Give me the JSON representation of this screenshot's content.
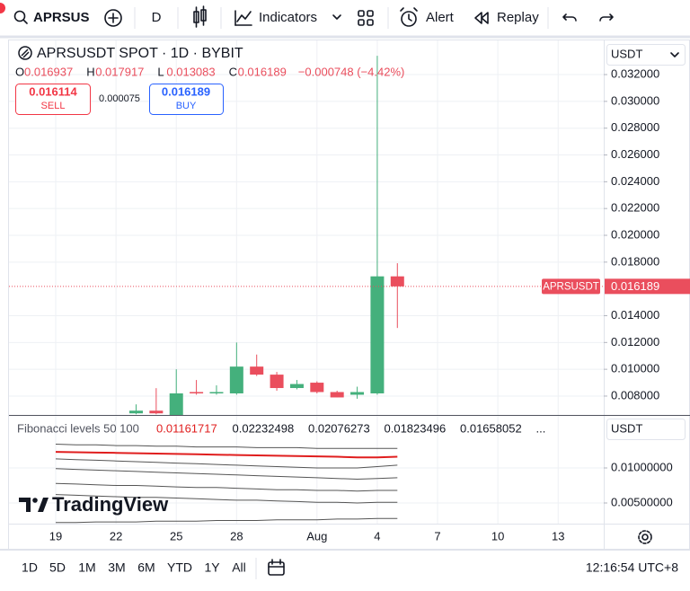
{
  "toolbar": {
    "symbol": "APRSUS",
    "interval": "D",
    "indicators": "Indicators",
    "alert": "Alert",
    "replay": "Replay"
  },
  "legend": {
    "title": "APRSUSDT SPOT · 1D · BYBIT",
    "ohlc": [
      {
        "key": "O",
        "value": "0.016937"
      },
      {
        "key": "H",
        "value": "0.017917"
      },
      {
        "key": "L",
        "value": "0.013083"
      },
      {
        "key": "C",
        "value": "0.016189"
      }
    ],
    "change": "−0.000748 (−4.42%)",
    "sell_price": "0.016114",
    "sell": "SELL",
    "spread": "0.000075",
    "buy_price": "0.016189",
    "buy": "BUY"
  },
  "currency": "USDT",
  "price_label": {
    "symbol": "APRSUSDT",
    "price": "0.016189"
  },
  "indicator_legend": {
    "title": "Fibonacci levels 50 100",
    "values": [
      "0.01161717",
      "0.02232498",
      "0.02076273",
      "0.01823496",
      "0.01658052",
      "..."
    ]
  },
  "watermark": "TradingView",
  "timeframes": [
    "1D",
    "5D",
    "1M",
    "3M",
    "6M",
    "YTD",
    "1Y",
    "All"
  ],
  "clock": "12:16:54 UTC+8",
  "chart_data": [
    {
      "type": "candlestick",
      "categories": [
        "19",
        null,
        null,
        "22",
        null,
        null,
        "25",
        null,
        null,
        "28",
        null,
        null,
        null,
        "Aug",
        null,
        null,
        "4",
        null,
        null,
        "7",
        null,
        null,
        "10",
        null,
        null,
        "13"
      ],
      "open": [
        null,
        null,
        null,
        null,
        0.00671,
        0.00691,
        0.0065,
        0.0083,
        0.0082,
        0.0082,
        0.0102,
        0.0096,
        0.0086,
        0.009,
        0.0083,
        0.0081,
        0.0082,
        0.016937,
        null,
        null,
        null,
        null,
        null,
        null,
        null,
        null
      ],
      "high": [
        null,
        null,
        null,
        null,
        0.00738,
        0.00859,
        0.01,
        0.0092,
        0.0088,
        0.012,
        0.0111,
        0.0098,
        0.0092,
        0.0091,
        0.0084,
        0.0087,
        0.0334,
        0.017917,
        null,
        null,
        null,
        null,
        null,
        null,
        null,
        null
      ],
      "low": [
        null,
        null,
        null,
        null,
        0.00664,
        0.00664,
        0.0064,
        0.0081,
        0.0081,
        0.0081,
        0.0095,
        0.0084,
        0.0085,
        0.0082,
        0.0079,
        0.0078,
        0.0081,
        0.013083,
        null,
        null,
        null,
        null,
        null,
        null,
        null,
        null
      ],
      "close": [
        null,
        null,
        null,
        null,
        0.00691,
        0.00671,
        0.0082,
        0.0082,
        0.0083,
        0.0102,
        0.0096,
        0.0086,
        0.0089,
        0.0083,
        0.0079,
        0.0083,
        0.016937,
        0.016189,
        null,
        null,
        null,
        null,
        null,
        null,
        null,
        null
      ],
      "up_color": "#44b07c",
      "down_color": "#ea4e5d",
      "price_line_color": "#ea4e5d",
      "ylim": [
        0.00659,
        0.03455
      ],
      "yticks": [
        {
          "value": 0.008,
          "label": "0.008000"
        },
        {
          "value": 0.01,
          "label": "0.010000"
        },
        {
          "value": 0.012,
          "label": "0.012000"
        },
        {
          "value": 0.014,
          "label": "0.014000"
        },
        {
          "value": 0.018,
          "label": "0.018000"
        },
        {
          "value": 0.02,
          "label": "0.020000"
        },
        {
          "value": 0.022,
          "label": "0.022000"
        },
        {
          "value": 0.024,
          "label": "0.024000"
        },
        {
          "value": 0.026,
          "label": "0.026000"
        },
        {
          "value": 0.028,
          "label": "0.028000"
        },
        {
          "value": 0.03,
          "label": "0.030000"
        },
        {
          "value": 0.032,
          "label": "0.032000"
        }
      ],
      "grid": true
    },
    {
      "type": "line",
      "series": [
        {
          "color": "#555555",
          "values": [
            0.0134,
            0.0133,
            0.0133,
            0.0132,
            0.0132,
            0.0131,
            0.0131,
            0.013,
            0.013,
            0.013,
            0.0129,
            0.0129,
            0.0129,
            0.0128,
            0.0128,
            0.0128,
            0.0128,
            0.0128,
            null,
            null,
            null,
            null,
            null,
            null,
            null,
            null
          ]
        },
        {
          "color": "#e01e1e",
          "values": [
            0.0123,
            0.01225,
            0.0122,
            0.01215,
            0.0121,
            0.01205,
            0.012,
            0.01195,
            0.0119,
            0.01185,
            0.0118,
            0.01175,
            0.0117,
            0.01165,
            0.0116,
            0.0115,
            0.0115,
            0.0116,
            null,
            null,
            null,
            null,
            null,
            null,
            null,
            null
          ]
        },
        {
          "color": "#555555",
          "values": [
            0.0113,
            0.0112,
            0.0111,
            0.011,
            0.0109,
            0.0108,
            0.0107,
            0.0106,
            0.0105,
            0.0104,
            0.0103,
            0.0102,
            0.0101,
            0.01,
            0.01,
            0.01,
            0.0102,
            0.0104,
            null,
            null,
            null,
            null,
            null,
            null,
            null,
            null
          ]
        },
        {
          "color": "#555555",
          "values": [
            0.0099,
            0.0098,
            0.0097,
            0.0096,
            0.0095,
            0.0094,
            0.0093,
            0.0092,
            0.0091,
            0.009,
            0.0089,
            0.0088,
            0.0087,
            0.0086,
            0.0085,
            0.0084,
            0.0085,
            0.0086,
            null,
            null,
            null,
            null,
            null,
            null,
            null,
            null
          ]
        },
        {
          "color": "#555555",
          "values": [
            0.0078,
            0.0077,
            0.0076,
            0.0075,
            0.0075,
            0.0074,
            0.0073,
            0.0072,
            0.0072,
            0.0071,
            0.007,
            0.0069,
            0.0069,
            0.0068,
            0.0068,
            0.0067,
            0.0068,
            0.0068,
            null,
            null,
            null,
            null,
            null,
            null,
            null,
            null
          ]
        },
        {
          "color": "#555555",
          "values": [
            0.0062,
            0.0061,
            0.006,
            0.0059,
            0.0058,
            0.0058,
            0.0057,
            0.0056,
            0.0055,
            0.0054,
            0.0054,
            0.0053,
            0.0052,
            0.0051,
            0.0051,
            0.005,
            0.0051,
            0.0051,
            null,
            null,
            null,
            null,
            null,
            null,
            null,
            null
          ]
        },
        {
          "color": "#555555",
          "values": [
            0.0022,
            0.0022,
            0.0023,
            0.0023,
            0.0023,
            0.0024,
            0.0024,
            0.0024,
            0.0025,
            0.0025,
            0.0025,
            0.0026,
            0.0026,
            0.0026,
            0.0027,
            0.0027,
            0.0028,
            0.0028,
            null,
            null,
            null,
            null,
            null,
            null,
            null,
            null
          ]
        }
      ],
      "ylim": [
        0.00205,
        0.01744
      ],
      "yticks": [
        {
          "value": 0.005,
          "label": "0.00500000"
        },
        {
          "value": 0.01,
          "label": "0.01000000"
        }
      ],
      "grid": true
    }
  ]
}
